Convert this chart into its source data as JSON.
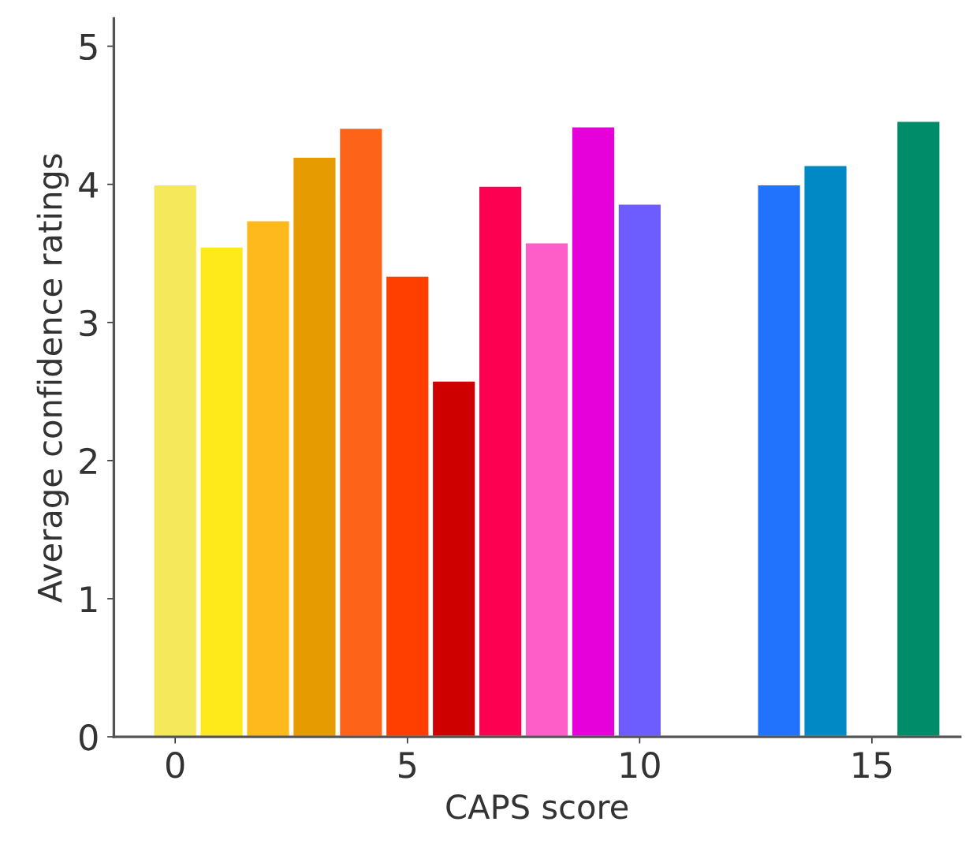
{
  "chart_data": {
    "type": "bar",
    "xlabel": "CAPS score",
    "ylabel": "Average confidence ratings",
    "x": [
      0,
      1,
      2,
      3,
      4,
      5,
      6,
      7,
      8,
      9,
      10,
      13,
      14,
      16
    ],
    "values": [
      4.0,
      3.55,
      3.74,
      4.2,
      4.41,
      3.34,
      2.58,
      3.99,
      3.58,
      4.42,
      3.86,
      4.0,
      4.14,
      4.46
    ],
    "colors": [
      "#f5e85a",
      "#feea1a",
      "#feba1c",
      "#e69c00",
      "#fe6419",
      "#fe3f00",
      "#cf0000",
      "#fe0052",
      "#fe5ec8",
      "#e600d9",
      "#6e5dfe",
      "#2173fe",
      "#0089c4",
      "#008b69"
    ],
    "xlim": [
      -1.32,
      16.9
    ],
    "ylim": [
      0,
      5.2
    ],
    "xticks": [
      0,
      5,
      10,
      15
    ],
    "yticks": [
      0,
      1,
      2,
      3,
      4,
      5
    ],
    "grid": false
  }
}
